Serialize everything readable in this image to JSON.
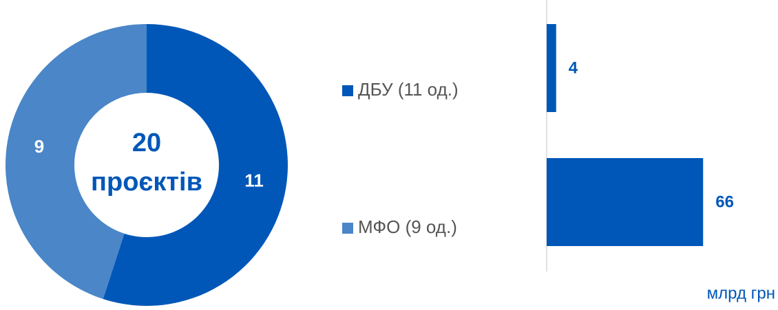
{
  "chart_data": [
    {
      "type": "pie",
      "donut": true,
      "categories": [
        "ДБУ  (11 од.)",
        "МФО (9 од.)"
      ],
      "values": [
        11,
        9
      ],
      "colors": [
        "#0057b8",
        "#4a86c8"
      ],
      "center_value": 20,
      "center_label": "проєктів"
    },
    {
      "type": "bar",
      "orientation": "horizontal",
      "values": [
        4,
        66
      ],
      "color": "#0057b8",
      "xlim": [
        0,
        70
      ],
      "unit_label": "млрд грн"
    }
  ]
}
